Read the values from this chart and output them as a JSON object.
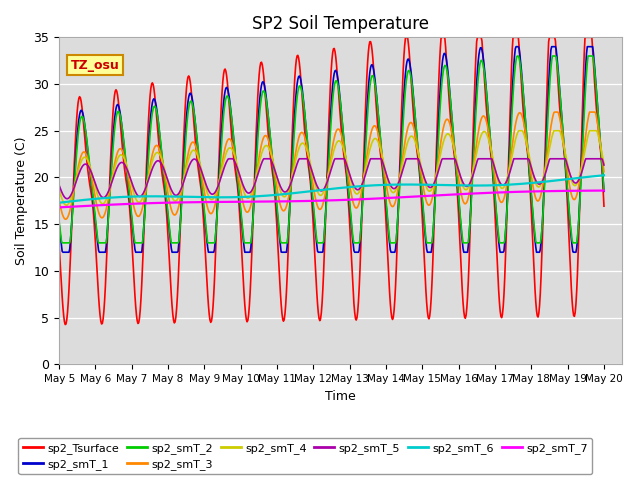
{
  "title": "SP2 Soil Temperature",
  "ylabel": "Soil Temperature (C)",
  "xlabel": "Time",
  "tz_label": "TZ_osu",
  "ylim": [
    0,
    35
  ],
  "yticks": [
    0,
    5,
    10,
    15,
    20,
    25,
    30,
    35
  ],
  "x_tick_labels": [
    "May 5",
    "May 6",
    "May 7",
    "May 8",
    "May 9",
    "May 10",
    "May 11",
    "May 12",
    "May 13",
    "May 14",
    "May 15",
    "May 16",
    "May 17",
    "May 18",
    "May 19",
    "May 20"
  ],
  "background_color": "#dcdcdc",
  "fig_background": "#ffffff",
  "series_colors": {
    "sp2_Tsurface": "#ff0000",
    "sp2_smT_1": "#0000cc",
    "sp2_smT_2": "#00cc00",
    "sp2_smT_3": "#ff8800",
    "sp2_smT_4": "#cccc00",
    "sp2_smT_5": "#aa00aa",
    "sp2_smT_6": "#00cccc",
    "sp2_smT_7": "#ff00ff"
  }
}
